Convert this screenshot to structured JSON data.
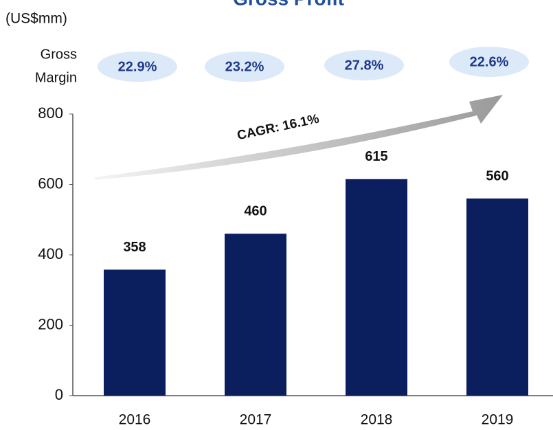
{
  "chart_data": {
    "type": "bar",
    "title": "Gross Profit",
    "unit_label": "(US$mm)",
    "categories": [
      "2016",
      "2017",
      "2018",
      "2019"
    ],
    "values": [
      358,
      460,
      615,
      560
    ],
    "color": "#0b1f5e",
    "ylim": [
      0,
      800
    ],
    "yticks": [
      0,
      200,
      400,
      600,
      800
    ],
    "gross_margin_label": [
      "Gross",
      "Margin"
    ],
    "gross_margin": [
      22.9,
      23.2,
      27.8,
      22.6
    ],
    "gross_margin_labels": [
      "22.9%",
      "23.2%",
      "27.8%",
      "22.6%"
    ],
    "annotation": "CAGR: 16.1%"
  }
}
